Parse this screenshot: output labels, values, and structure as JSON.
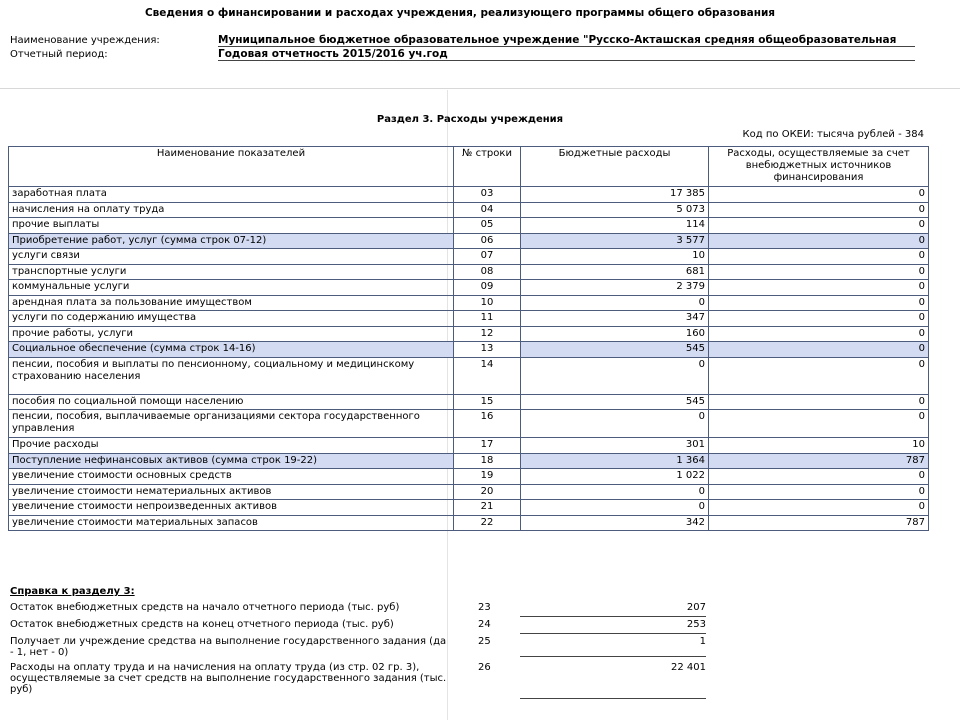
{
  "header": {
    "title": "Сведения о финансировании и расходах учреждения, реализующего программы общего образования",
    "fields": [
      {
        "label": "Наименование учреждения:",
        "value": "Муниципальное бюджетное образовательное учреждение \"Русско-Акташская средняя общеобразовательная"
      },
      {
        "label": "Отчетный период:",
        "value": "Годовая отчетность 2015/2016 уч.год"
      }
    ]
  },
  "section": {
    "title": "Раздел 3. Расходы учреждения",
    "unit": "Код по ОКЕИ: тысяча рублей - 384"
  },
  "table": {
    "columns": [
      "Наименование показателей",
      "№ строки",
      "Бюджетные расходы",
      "Расходы, осуществляемые за счет внебюджетных источников финансирования"
    ],
    "rows": [
      {
        "name": "заработная плата",
        "code": "03",
        "budget": "17 385",
        "extra": "0"
      },
      {
        "name": "начисления на оплату труда",
        "code": "04",
        "budget": "5 073",
        "extra": "0"
      },
      {
        "name": "прочие выплаты",
        "code": "05",
        "budget": "114",
        "extra": "0"
      },
      {
        "name": "Приобретение работ, услуг (сумма строк 07-12)",
        "code": "06",
        "budget": "3 577",
        "extra": "0",
        "highlight": true
      },
      {
        "name": "услуги связи",
        "code": "07",
        "budget": "10",
        "extra": "0"
      },
      {
        "name": "транспортные услуги",
        "code": "08",
        "budget": "681",
        "extra": "0"
      },
      {
        "name": "коммунальные услуги",
        "code": "09",
        "budget": "2 379",
        "extra": "0"
      },
      {
        "name": "арендная плата за пользование имуществом",
        "code": "10",
        "budget": "0",
        "extra": "0"
      },
      {
        "name": "услуги по содержанию имущества",
        "code": "11",
        "budget": "347",
        "extra": "0"
      },
      {
        "name": "прочие работы, услуги",
        "code": "12",
        "budget": "160",
        "extra": "0"
      },
      {
        "name": "Социальное обеспечение (сумма строк 14-16)",
        "code": "13",
        "budget": "545",
        "extra": "0",
        "highlight": true
      },
      {
        "name": "пенсии, пособия и выплаты по пенсионному, социальному и медицинскому страхованию населения",
        "code": "14",
        "budget": "0",
        "extra": "0"
      },
      {
        "name": "пособия по социальной помощи населению",
        "code": "15",
        "budget": "545",
        "extra": "0"
      },
      {
        "name": "пенсии, пособия, выплачиваемые организациями сектора государственного управления",
        "code": "16",
        "budget": "0",
        "extra": "0"
      },
      {
        "name": "Прочие расходы",
        "code": "17",
        "budget": "301",
        "extra": "10"
      },
      {
        "name": "Поступление нефинансовых активов (сумма строк 19-22)",
        "code": "18",
        "budget": "1 364",
        "extra": "787",
        "highlight": true
      },
      {
        "name": "увеличение стоимости основных средств",
        "code": "19",
        "budget": "1 022",
        "extra": "0"
      },
      {
        "name": "увеличение стоимости нематериальных активов",
        "code": "20",
        "budget": "0",
        "extra": "0"
      },
      {
        "name": "увеличение стоимости непроизведенных активов",
        "code": "21",
        "budget": "0",
        "extra": "0"
      },
      {
        "name": "увеличение стоимости материальных запасов",
        "code": "22",
        "budget": "342",
        "extra": "787"
      }
    ]
  },
  "reference": {
    "title": "Справка к разделу 3:",
    "rows": [
      {
        "label": "Остаток внебюджетных средств на начало отчетного периода (тыс. руб)",
        "code": "23",
        "value": "207"
      },
      {
        "label": "Остаток внебюджетных средств на конец отчетного периода (тыс. руб)",
        "code": "24",
        "value": "253"
      },
      {
        "label": "Получает ли учреждение средства на выполнение государственного задания (да - 1, нет - 0)",
        "code": "25",
        "value": "1"
      },
      {
        "label": "Расходы на оплату труда и на начисления на оплату труда (из стр. 02 гр. 3), осуществляемые за счет средств на выполнение государственного задания (тыс. руб)",
        "code": "26",
        "value": "22 401"
      }
    ]
  }
}
